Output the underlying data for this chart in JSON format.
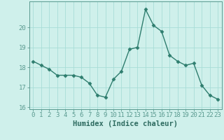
{
  "x": [
    0,
    1,
    2,
    3,
    4,
    5,
    6,
    7,
    8,
    9,
    10,
    11,
    12,
    13,
    14,
    15,
    16,
    17,
    18,
    19,
    20,
    21,
    22,
    23
  ],
  "y": [
    18.3,
    18.1,
    17.9,
    17.6,
    17.6,
    17.6,
    17.5,
    17.2,
    16.6,
    16.5,
    17.4,
    17.8,
    18.9,
    19.0,
    20.9,
    20.1,
    19.8,
    18.6,
    18.3,
    18.1,
    18.2,
    17.1,
    16.6,
    16.4
  ],
  "xlabel": "Humidex (Indice chaleur)",
  "xlim": [
    -0.5,
    23.5
  ],
  "ylim": [
    15.9,
    21.3
  ],
  "yticks": [
    16,
    17,
    18,
    19,
    20
  ],
  "xticks": [
    0,
    1,
    2,
    3,
    4,
    5,
    6,
    7,
    8,
    9,
    10,
    11,
    12,
    13,
    14,
    15,
    16,
    17,
    18,
    19,
    20,
    21,
    22,
    23
  ],
  "line_color": "#2e7d6e",
  "marker": "D",
  "marker_size": 2.5,
  "bg_color": "#cff0eb",
  "grid_color": "#a8ddd7",
  "spine_color": "#5a9a90",
  "label_color": "#2e6b60",
  "font_size_xlabel": 7.5,
  "font_size_ticks": 6.5,
  "line_width": 1.0
}
